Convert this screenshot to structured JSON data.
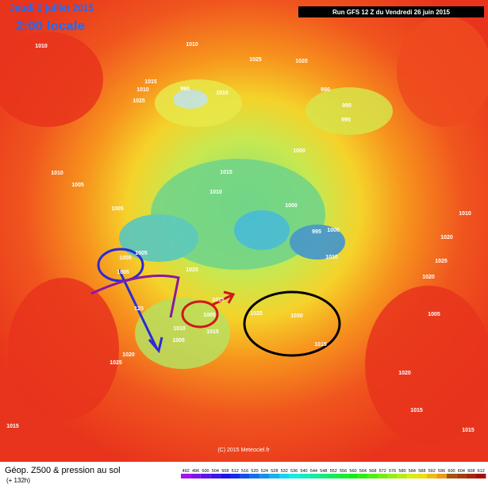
{
  "header": {
    "date": "Jeudi 2 juillet 2015",
    "time": "2:00 locale",
    "run": "Run GFS 12 Z du Vendredi 26 juin 2015"
  },
  "footer": {
    "title": "Géop. Z500 & pression au sol",
    "lead": "(+ 132h)",
    "credit": "(C) 2015 Meteociel.fr"
  },
  "scale": [
    492,
    496,
    500,
    504,
    508,
    512,
    516,
    520,
    524,
    528,
    532,
    536,
    540,
    544,
    548,
    552,
    556,
    560,
    564,
    568,
    572,
    576,
    580,
    584,
    588,
    592,
    596,
    600,
    604,
    608,
    612
  ],
  "pressure_labels": [
    1010,
    1010,
    1025,
    1020,
    1015,
    1010,
    1025,
    990,
    1010,
    990,
    990,
    995,
    1000,
    1010,
    1005,
    1015,
    1010,
    1005,
    1000,
    995,
    1000,
    1005,
    1000,
    1005,
    1010,
    1020,
    1020,
    1010,
    1020,
    1025,
    1005,
    1015,
    1025,
    1030,
    1005,
    1010,
    1005,
    1015,
    1020,
    1025,
    1015,
    1015,
    1015,
    1015,
    1020,
    125
  ]
}
